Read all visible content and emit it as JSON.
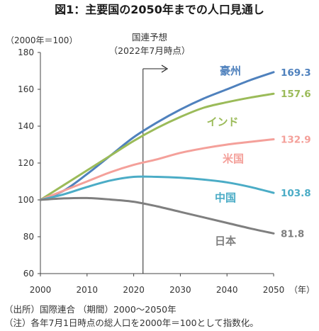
{
  "chart_data": {
    "type": "line",
    "title": "図1：主要国の2050年までの人口見通し",
    "ylabel": "（2000年＝100）",
    "xlabel": "（年）",
    "ylim": [
      60,
      180
    ],
    "xlim": [
      2000,
      2050
    ],
    "yticks": [
      60,
      80,
      100,
      120,
      140,
      160,
      180
    ],
    "xticks": [
      2000,
      2010,
      2020,
      2030,
      2040,
      2050
    ],
    "grid": false,
    "annotation": {
      "line1": "国連予想",
      "line2": "（2022年7月時点）",
      "x": 2022
    },
    "footnote1": "（出所）国際連合 （期間）2000～2050年",
    "footnote2": "（注）各年7月1日時点の総人口を2000年＝100として指数化。",
    "series": [
      {
        "name": "豪州",
        "color": "#4f81bd",
        "end_label": "169.3",
        "x": [
          2000,
          2005,
          2010,
          2015,
          2020,
          2025,
          2030,
          2035,
          2040,
          2045,
          2050
        ],
        "values": [
          100,
          105,
          114,
          124,
          134,
          142,
          149,
          155,
          160,
          165,
          169.3
        ]
      },
      {
        "name": "インド",
        "color": "#9bbb59",
        "end_label": "157.6",
        "x": [
          2000,
          2005,
          2010,
          2015,
          2020,
          2025,
          2030,
          2035,
          2040,
          2045,
          2050
        ],
        "values": [
          100,
          108,
          116,
          124,
          132,
          139,
          145,
          150,
          153,
          155.5,
          157.6
        ]
      },
      {
        "name": "米国",
        "color": "#f4a09a",
        "end_label": "132.9",
        "x": [
          2000,
          2005,
          2010,
          2015,
          2020,
          2025,
          2030,
          2035,
          2040,
          2045,
          2050
        ],
        "values": [
          100,
          105,
          110,
          115,
          119,
          122,
          125.5,
          128,
          130,
          131.5,
          132.9
        ]
      },
      {
        "name": "中国",
        "color": "#4bacc6",
        "end_label": "103.8",
        "x": [
          2000,
          2005,
          2010,
          2015,
          2020,
          2025,
          2030,
          2035,
          2040,
          2045,
          2050
        ],
        "values": [
          100,
          103,
          107,
          110.5,
          112.5,
          112.5,
          112,
          111,
          109.5,
          107,
          103.8
        ]
      },
      {
        "name": "日本",
        "color": "#7f7f7f",
        "end_label": "81.8",
        "x": [
          2000,
          2005,
          2010,
          2015,
          2020,
          2025,
          2030,
          2035,
          2040,
          2045,
          2050
        ],
        "values": [
          100,
          100.8,
          101,
          100.2,
          99,
          96.5,
          93.5,
          90.5,
          87.5,
          84.5,
          81.8
        ]
      }
    ]
  }
}
